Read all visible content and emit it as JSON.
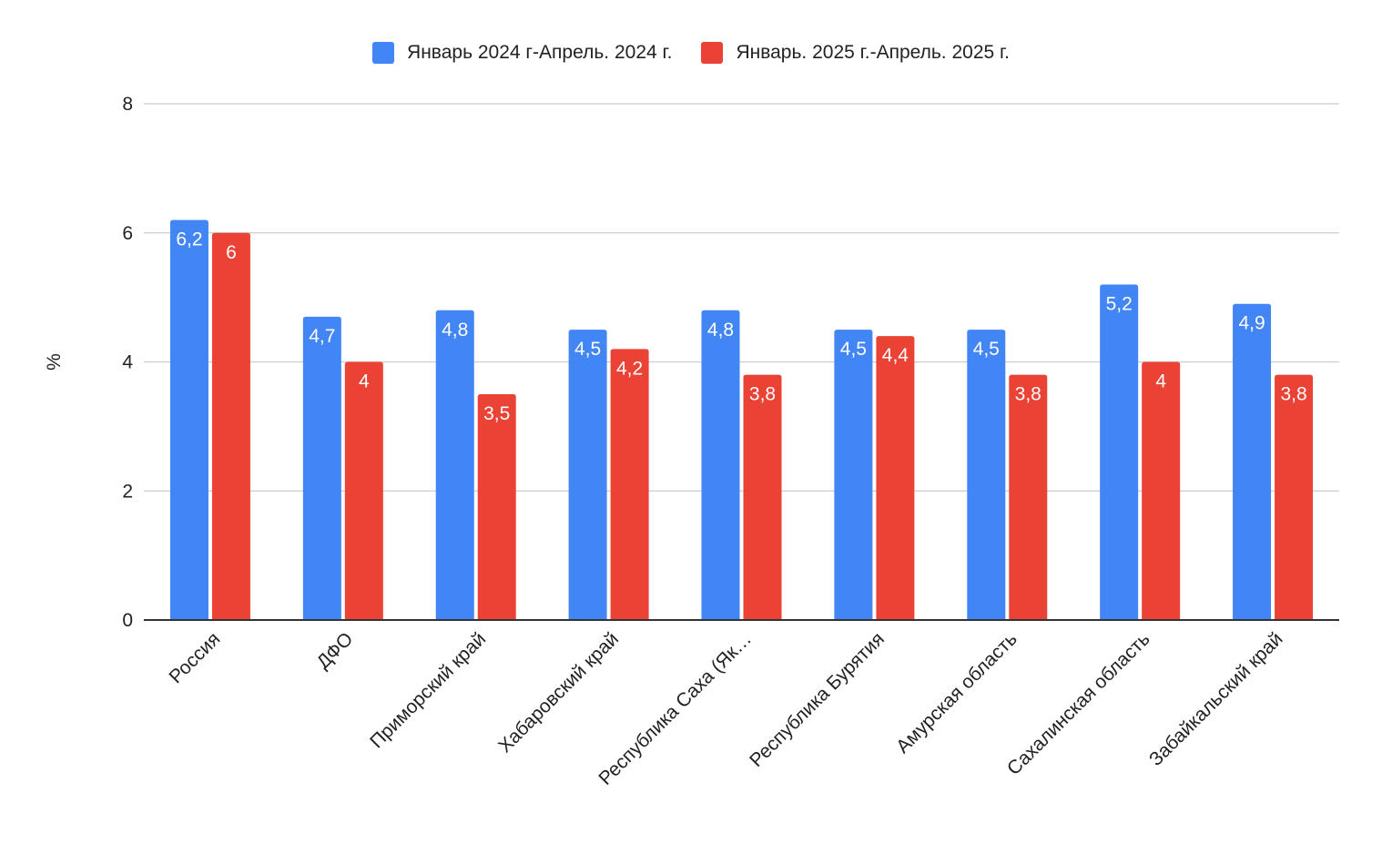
{
  "legend": {
    "items": [
      {
        "label": "Январь 2024 г-Апрель. 2024 г.",
        "color": "#4285f4"
      },
      {
        "label": "Январь. 2025 г.-Апрель. 2025 г.",
        "color": "#ea4335"
      }
    ]
  },
  "chart_data": {
    "type": "bar",
    "title": "",
    "xlabel": "",
    "ylabel": "%",
    "ylim": [
      0,
      8
    ],
    "yticks": [
      "0",
      "2",
      "4",
      "6",
      "8"
    ],
    "grid": true,
    "legend_position": "top",
    "categories": [
      "Россия",
      "ДФО",
      "Приморский край",
      "Хабаровский край",
      "Республика Саха (Як…",
      "Республика Бурятия",
      "Амурская область",
      "Сахалинская область",
      "Забайкальский край"
    ],
    "series": [
      {
        "name": "Январь 2024 г-Апрель. 2024 г.",
        "color": "#4285f4",
        "values": [
          6.2,
          4.7,
          4.8,
          4.5,
          4.8,
          4.5,
          4.5,
          5.2,
          4.9
        ],
        "labels": [
          "6,2",
          "4,7",
          "4,8",
          "4,5",
          "4,8",
          "4,5",
          "4,5",
          "5,2",
          "4,9"
        ]
      },
      {
        "name": "Январь. 2025 г.-Апрель. 2025 г.",
        "color": "#ea4335",
        "values": [
          6,
          4,
          3.5,
          4.2,
          3.8,
          4.4,
          3.8,
          4,
          3.8
        ],
        "labels": [
          "6",
          "4",
          "3,5",
          "4,2",
          "3,8",
          "4,4",
          "3,8",
          "4",
          "3,8"
        ]
      }
    ]
  }
}
